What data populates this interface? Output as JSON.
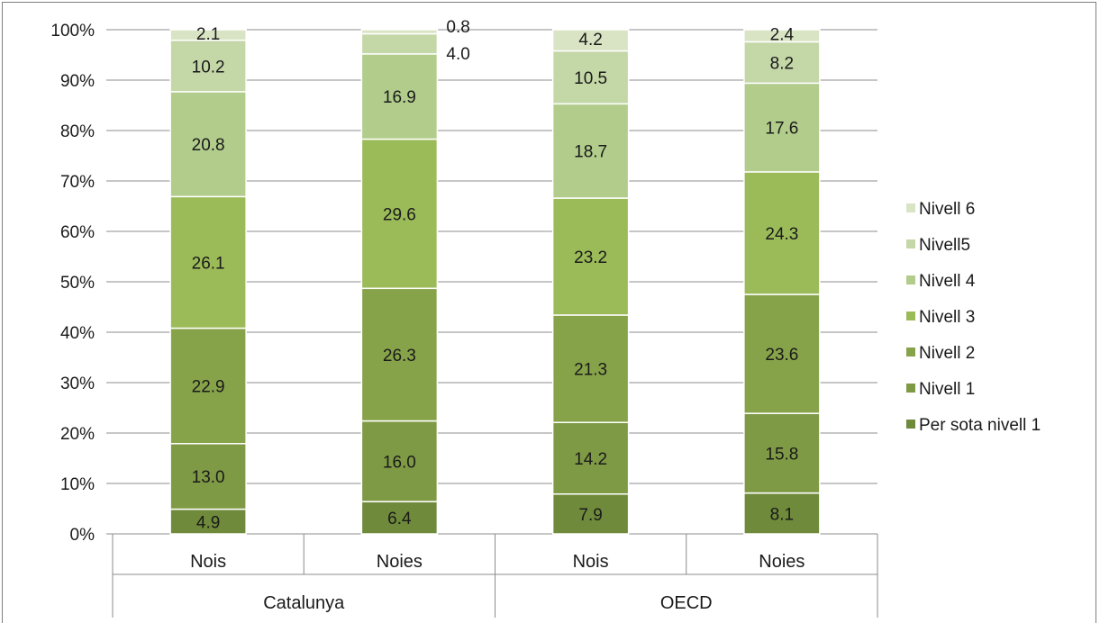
{
  "chart_data": {
    "type": "bar",
    "stacked": true,
    "percent_stacked": true,
    "groups": [
      {
        "name": "Catalunya",
        "categories": [
          "Nois",
          "Noies"
        ]
      },
      {
        "name": "OECD",
        "categories": [
          "Nois",
          "Noies"
        ]
      }
    ],
    "categories": [
      "Nois",
      "Noies",
      "Nois",
      "Noies"
    ],
    "series": [
      {
        "name": "Per sota nivell 1",
        "color": "#6f8a3a",
        "values": [
          4.9,
          6.4,
          7.9,
          8.1
        ],
        "labels": [
          "4.9",
          "6.4",
          "7.9",
          "8.1"
        ]
      },
      {
        "name": "Nivell 1",
        "color": "#7f9a45",
        "values": [
          13.0,
          16.0,
          14.2,
          15.8
        ],
        "labels": [
          "13.0",
          "16.0",
          "14.2",
          "15.8"
        ]
      },
      {
        "name": "Nivell 2",
        "color": "#87a34a",
        "values": [
          22.9,
          26.3,
          21.3,
          23.6
        ],
        "labels": [
          "22.9",
          "26.3",
          "21.3",
          "23.6"
        ]
      },
      {
        "name": "Nivell 3",
        "color": "#9bbb59",
        "values": [
          26.1,
          29.6,
          23.2,
          24.3
        ],
        "labels": [
          "26.1",
          "29.6",
          "23.2",
          "24.3"
        ]
      },
      {
        "name": "Nivell 4",
        "color": "#b1cc8b",
        "values": [
          20.8,
          16.9,
          18.7,
          17.6
        ],
        "labels": [
          "20.8",
          "16.9",
          "18.7",
          "17.6"
        ]
      },
      {
        "name": "Nivell5",
        "color": "#c4d7a7",
        "values": [
          10.2,
          4.0,
          10.5,
          8.2
        ],
        "labels": [
          "10.2",
          "4.0",
          "10.5",
          "8.2"
        ]
      },
      {
        "name": "Nivell 6",
        "color": "#d8e4c3",
        "values": [
          2.1,
          0.8,
          4.2,
          2.4
        ],
        "labels": [
          "2.1",
          "0.8",
          "4.2",
          "2.4"
        ]
      }
    ],
    "y_ticks": [
      "0%",
      "10%",
      "20%",
      "30%",
      "40%",
      "50%",
      "60%",
      "70%",
      "80%",
      "90%",
      "100%"
    ],
    "ylim": [
      0,
      100
    ],
    "grid": true,
    "legend_position": "right",
    "legend_order": [
      "Nivell 6",
      "Nivell5",
      "Nivell 4",
      "Nivell 3",
      "Nivell 2",
      "Nivell 1",
      "Per sota nivell 1"
    ]
  }
}
